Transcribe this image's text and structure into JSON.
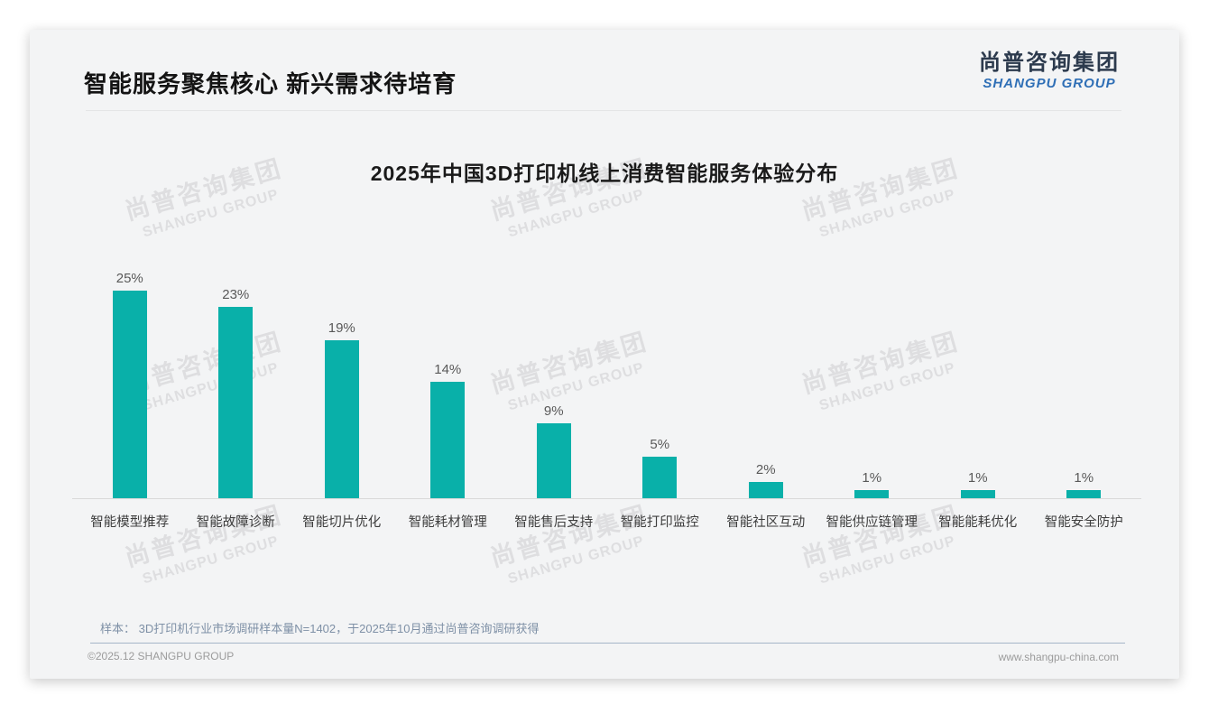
{
  "page": {
    "title": "智能服务聚焦核心 新兴需求待培育",
    "logo": {
      "cn": "尚普咨询集团",
      "en": "SHANGPU GROUP"
    },
    "watermark": {
      "cn": "尚普咨询集团",
      "en": "SHANGPU GROUP"
    },
    "note": "样本： 3D打印机行业市场调研样本量N=1402，于2025年10月通过尚普咨询调研获得",
    "footer_left": "©2025.12 SHANGPU GROUP",
    "footer_right": "www.shangpu-china.com"
  },
  "colors": {
    "bar": "#09b0a9",
    "logo_cn": "#2c3a4d",
    "logo_en": "#2f6fb6",
    "axis": "#d9d9d9"
  },
  "chart_data": {
    "type": "bar",
    "title": "2025年中国3D打印机线上消费智能服务体验分布",
    "categories": [
      "智能模型推荐",
      "智能故障诊断",
      "智能切片优化",
      "智能耗材管理",
      "智能售后支持",
      "智能打印监控",
      "智能社区互动",
      "智能供应链管理",
      "智能能耗优化",
      "智能安全防护"
    ],
    "values": [
      25,
      23,
      19,
      14,
      9,
      5,
      2,
      1,
      1,
      1
    ],
    "unit": "%",
    "bar_color": "#09b0a9",
    "xlabel": "",
    "ylabel": "",
    "ylim": [
      0,
      27
    ],
    "grid": false,
    "legend": false,
    "data_labels_shown": true
  }
}
